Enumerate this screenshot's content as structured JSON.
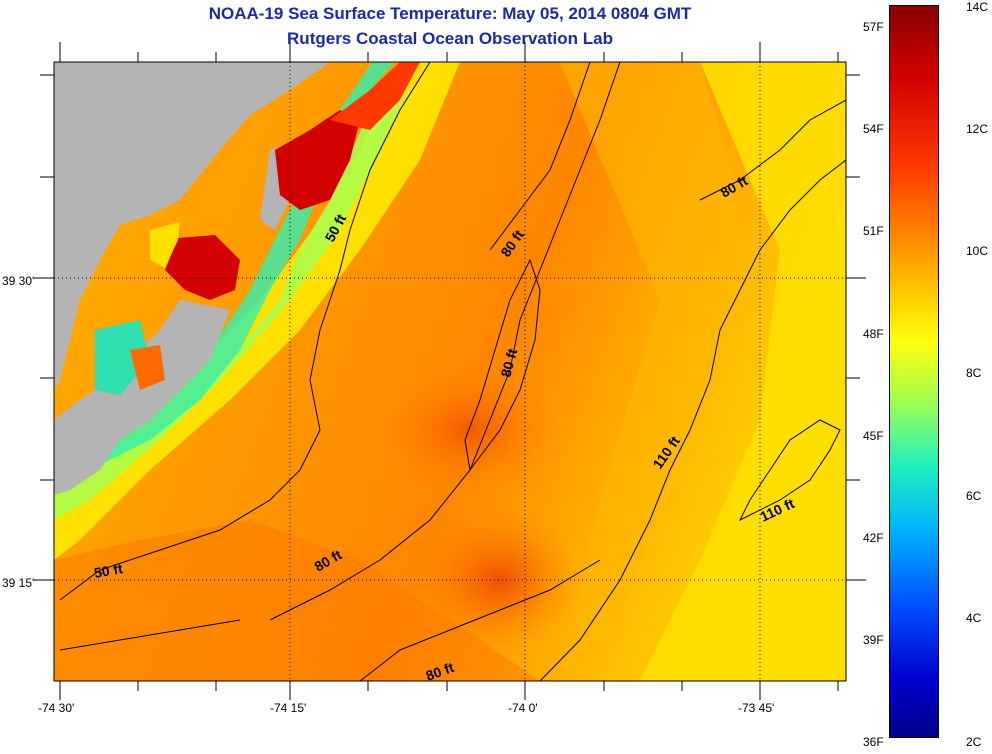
{
  "title": {
    "line1": "NOAA-19 Sea Surface Temperature:  May 05, 2014 0804 GMT",
    "line2": "Rutgers Coastal Ocean Observation Lab"
  },
  "axes": {
    "x_ticks": [
      {
        "label": "-74 30'",
        "lon": -74.5
      },
      {
        "label": "-74 15'",
        "lon": -74.25
      },
      {
        "label": "-74 0'",
        "lon": -74.0
      },
      {
        "label": "-73 45'",
        "lon": -73.75
      }
    ],
    "y_ticks": [
      {
        "label": "39 30'",
        "lat": 39.5
      },
      {
        "label": "39 15'",
        "lat": 39.25
      }
    ],
    "lon_range": [
      -74.5,
      -73.7
    ],
    "lat_range": [
      39.17,
      39.69
    ]
  },
  "colorbar": {
    "fahrenheit_labels": [
      "57F",
      "54F",
      "51F",
      "48F",
      "45F",
      "42F",
      "39F",
      "36F"
    ],
    "celsius_labels": [
      "14C",
      "12C",
      "10C",
      "8C",
      "6C",
      "4C",
      "2C"
    ],
    "celsius_range": [
      2,
      14
    ]
  },
  "contour_labels": [
    {
      "text": "50 ft"
    },
    {
      "text": "80 ft"
    },
    {
      "text": "80 ft"
    },
    {
      "text": "80 ft"
    },
    {
      "text": "110 ft"
    },
    {
      "text": "110 ft"
    },
    {
      "text": "50 ft"
    },
    {
      "text": "80 ft"
    },
    {
      "text": "80 ft"
    }
  ],
  "colors": {
    "land": "#b4b4b4",
    "title": "#1a2aa8",
    "warm": "#ff8c00",
    "hot": "#d40000",
    "cool": "#30e0a0"
  }
}
